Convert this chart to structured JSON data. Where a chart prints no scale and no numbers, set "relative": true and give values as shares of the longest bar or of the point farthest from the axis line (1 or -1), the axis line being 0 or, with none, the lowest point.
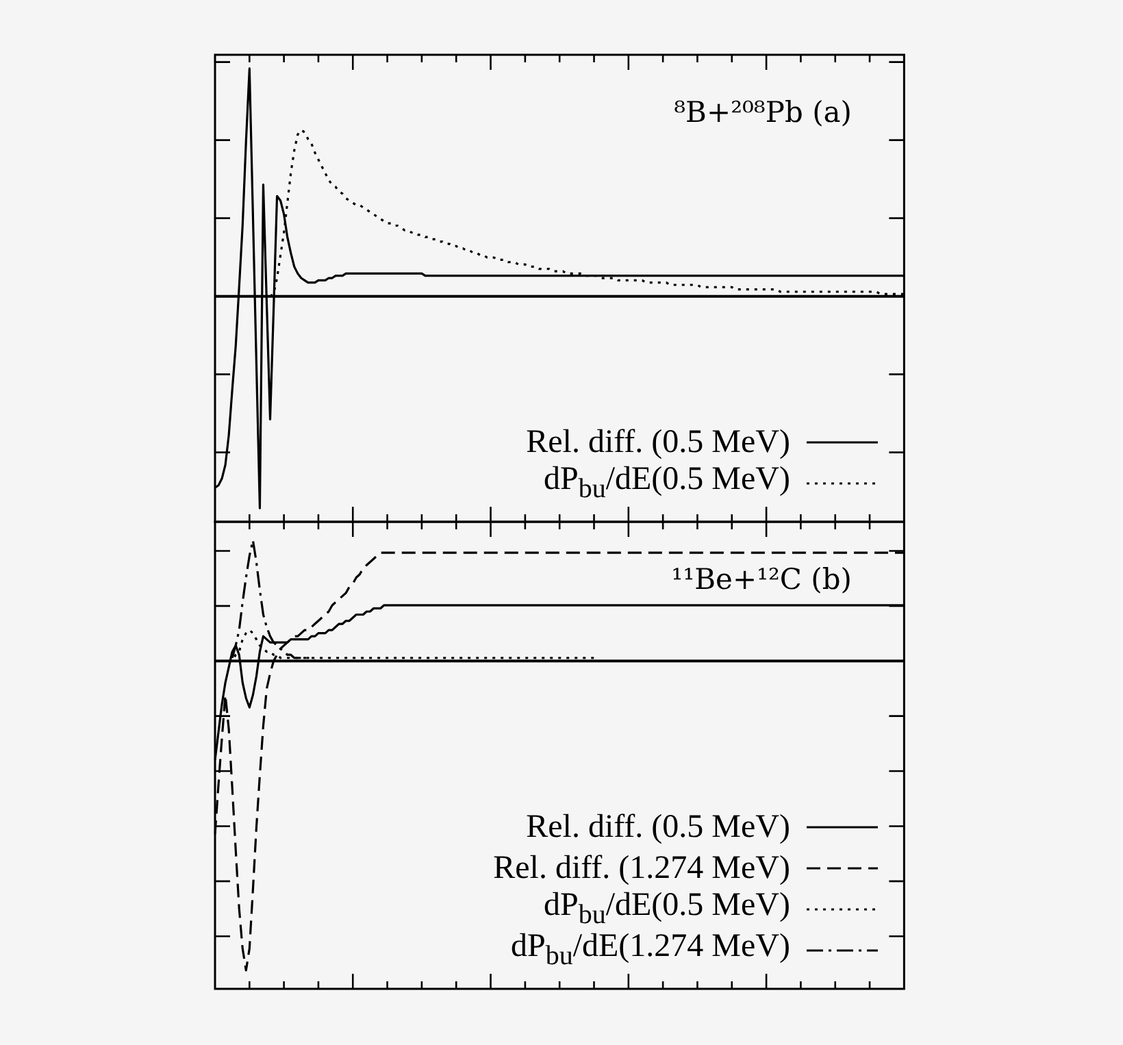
{
  "chart_data": [
    {
      "type": "line",
      "title": "⁸B+²⁰⁸Pb (a)",
      "relative": true,
      "legend": "bottom right",
      "categories": [
        null,
        null,
        null,
        null,
        null,
        null,
        null,
        null,
        null,
        null,
        null,
        null,
        null,
        null,
        null,
        null,
        null,
        null,
        null,
        null,
        null,
        null,
        null,
        null,
        null,
        null,
        null,
        null,
        null,
        null,
        null,
        null,
        null,
        null,
        null,
        null,
        null,
        null,
        null,
        null,
        null,
        null,
        null,
        null,
        null,
        null,
        null,
        null,
        null,
        null,
        null,
        null,
        null,
        null,
        null,
        null,
        null,
        null,
        null,
        null,
        null,
        null,
        null,
        null,
        null,
        null,
        null,
        null,
        null,
        null,
        null,
        null,
        null,
        null,
        null,
        null,
        null,
        null,
        null,
        null,
        null,
        null,
        null,
        null,
        null,
        null,
        null,
        null,
        null,
        null,
        null,
        null,
        null,
        null,
        null,
        null,
        null,
        null,
        null,
        null,
        null,
        null,
        null,
        null,
        null,
        null,
        null,
        null,
        null,
        null,
        null,
        null,
        null,
        null,
        null,
        null,
        null,
        null,
        null,
        null,
        null,
        null,
        null,
        null,
        null,
        null,
        null,
        null,
        null,
        null,
        null,
        null,
        null,
        null,
        null,
        null,
        null,
        null,
        null,
        null,
        null,
        null,
        null,
        null,
        null,
        null,
        null,
        null,
        null,
        null,
        null,
        null,
        null,
        null,
        null,
        null,
        null,
        null,
        null,
        null,
        null,
        null,
        null,
        null,
        null,
        null,
        null,
        null,
        null,
        null,
        null,
        null,
        null,
        null,
        null,
        null,
        null,
        null,
        null,
        null,
        null,
        null,
        null,
        null,
        null,
        null,
        null,
        null,
        null,
        null,
        null,
        null,
        null,
        null,
        null,
        null,
        null,
        null,
        null,
        null,
        null
      ],
      "series": [
        {
          "name": "Rel. diff. (0.5 MeV)",
          "color": "#000000",
          "line_style": "solid",
          "values": [
            -0.84,
            -0.83,
            -0.8,
            -0.74,
            -0.61,
            -0.41,
            -0.22,
            0.04,
            0.31,
            0.68,
            1,
            0.36,
            -0.29,
            -0.93,
            0.49,
            -0.03,
            -0.54,
            -0.06,
            0.44,
            0.42,
            0.36,
            0.26,
            0.19,
            0.13,
            0.1,
            0.08,
            0.07,
            0.06,
            0.06,
            0.06,
            0.07,
            0.07,
            0.07,
            0.08,
            0.08,
            0.09,
            0.09,
            0.09,
            0.1,
            0.1,
            0.1,
            0.1,
            0.1,
            0.1,
            0.1,
            0.1,
            0.1,
            0.1,
            0.1,
            0.1,
            0.1,
            0.1,
            0.1,
            0.1,
            0.1,
            0.1,
            0.1,
            0.1,
            0.1,
            0.1,
            0.1,
            0.09,
            0.09,
            0.09,
            0.09,
            0.09,
            0.09,
            0.09,
            0.09,
            0.09,
            0.09,
            0.09,
            0.09,
            0.09,
            0.09,
            0.09,
            0.09,
            0.09,
            0.09,
            0.09,
            0.09,
            0.09,
            0.09,
            0.09,
            0.09,
            0.09,
            0.09,
            0.09,
            0.09,
            0.09,
            0.09,
            0.09,
            0.09,
            0.09,
            0.09,
            0.09,
            0.09,
            0.09,
            0.09,
            0.09,
            0.09,
            0.09,
            0.09,
            0.09,
            0.09,
            0.09,
            0.09,
            0.09,
            0.09,
            0.09,
            0.09,
            0.09,
            0.09,
            0.09,
            0.09,
            0.09,
            0.09,
            0.09,
            0.09,
            0.09,
            0.09,
            0.09,
            0.09,
            0.09,
            0.09,
            0.09,
            0.09,
            0.09,
            0.09,
            0.09,
            0.09,
            0.09,
            0.09,
            0.09,
            0.09,
            0.09,
            0.09,
            0.09,
            0.09,
            0.09,
            0.09,
            0.09,
            0.09,
            0.09,
            0.09,
            0.09,
            0.09,
            0.09,
            0.09,
            0.09,
            0.09,
            0.09,
            0.09,
            0.09,
            0.09,
            0.09,
            0.09,
            0.09,
            0.09,
            0.09,
            0.09,
            0.09,
            0.09,
            0.09,
            0.09,
            0.09,
            0.09,
            0.09,
            0.09,
            0.09,
            0.09,
            0.09,
            0.09,
            0.09,
            0.09,
            0.09,
            0.09,
            0.09,
            0.09,
            0.09,
            0.09,
            0.09,
            0.09,
            0.09,
            0.09,
            0.09,
            0.09,
            0.09,
            0.09,
            0.09,
            0.09,
            0.09,
            0.09,
            0.09,
            0.09,
            0.09,
            0.09,
            0.09,
            0.09,
            0.09,
            0.09
          ]
        },
        {
          "name": "dP$_{bu}$/dE(0.5 MeV)",
          "color": "#000000",
          "line_style": "dotted",
          "values": [
            null,
            null,
            null,
            null,
            null,
            null,
            null,
            null,
            null,
            null,
            null,
            null,
            null,
            null,
            null,
            null,
            0,
            0.01,
            0.08,
            0.18,
            0.28,
            0.41,
            0.54,
            0.64,
            0.71,
            0.73,
            0.72,
            0.69,
            0.67,
            0.63,
            0.6,
            0.57,
            0.54,
            0.51,
            0.49,
            0.48,
            0.46,
            0.45,
            0.43,
            0.42,
            0.41,
            0.4,
            0.4,
            0.39,
            0.38,
            0.37,
            0.36,
            0.35,
            0.34,
            0.33,
            0.32,
            0.32,
            0.31,
            0.31,
            0.3,
            0.29,
            0.29,
            0.28,
            0.28,
            0.27,
            0.27,
            0.26,
            0.26,
            0.25,
            0.25,
            0.24,
            0.24,
            0.23,
            0.23,
            0.22,
            0.22,
            0.21,
            0.21,
            0.2,
            0.2,
            0.19,
            0.19,
            0.18,
            0.18,
            0.17,
            0.17,
            0.17,
            0.16,
            0.16,
            0.16,
            0.15,
            0.15,
            0.15,
            0.14,
            0.14,
            0.14,
            0.13,
            0.13,
            0.13,
            0.12,
            0.12,
            0.12,
            0.12,
            0.11,
            0.11,
            0.11,
            0.11,
            0.1,
            0.1,
            0.1,
            0.1,
            0.1,
            0.09,
            0.09,
            0.09,
            0.09,
            0.09,
            0.08,
            0.08,
            0.08,
            0.08,
            0.08,
            0.07,
            0.07,
            0.07,
            0.07,
            0.07,
            0.07,
            0.07,
            0.07,
            0.06,
            0.06,
            0.06,
            0.06,
            0.06,
            0.06,
            0.06,
            0.05,
            0.05,
            0.05,
            0.05,
            0.05,
            0.05,
            0.05,
            0.05,
            0.05,
            0.04,
            0.04,
            0.04,
            0.04,
            0.04,
            0.04,
            0.04,
            0.04,
            0.04,
            0.04,
            0.03,
            0.03,
            0.03,
            0.03,
            0.03,
            0.03,
            0.03,
            0.03,
            0.03,
            0.03,
            0.03,
            0.03,
            0.03,
            0.02,
            0.02,
            0.02,
            0.02,
            0.02,
            0.02,
            0.02,
            0.02,
            0.02,
            0.02,
            0.02,
            0.02,
            0.02,
            0.02,
            0.02,
            0.02,
            0.02,
            0.02,
            0.02,
            0.02,
            0.02,
            0.02,
            0.02,
            0.02,
            0.02,
            0.02,
            0.02,
            0.02,
            0.02,
            0.01,
            0.01,
            0.01,
            0.01,
            0.01,
            0.01,
            0.01,
            0.01
          ]
        }
      ]
    },
    {
      "type": "line",
      "title": "¹¹Be+¹²C (b)",
      "relative": true,
      "legend": "bottom right",
      "categories": [
        null,
        null,
        null,
        null,
        null,
        null,
        null,
        null,
        null,
        null,
        null,
        null,
        null,
        null,
        null,
        null,
        null,
        null,
        null,
        null,
        null,
        null,
        null,
        null,
        null,
        null,
        null,
        null,
        null,
        null,
        null,
        null,
        null,
        null,
        null,
        null,
        null,
        null,
        null,
        null,
        null,
        null,
        null,
        null,
        null,
        null,
        null,
        null,
        null,
        null,
        null,
        null,
        null,
        null,
        null,
        null,
        null,
        null,
        null,
        null,
        null,
        null,
        null,
        null,
        null,
        null,
        null,
        null,
        null,
        null,
        null,
        null,
        null,
        null,
        null,
        null,
        null,
        null,
        null,
        null,
        null,
        null,
        null,
        null,
        null,
        null,
        null,
        null,
        null,
        null,
        null,
        null,
        null,
        null,
        null,
        null,
        null,
        null,
        null,
        null,
        null,
        null,
        null,
        null,
        null,
        null,
        null,
        null,
        null,
        null,
        null,
        null,
        null,
        null,
        null,
        null,
        null,
        null,
        null,
        null,
        null,
        null,
        null,
        null,
        null,
        null,
        null,
        null,
        null,
        null,
        null,
        null,
        null,
        null,
        null,
        null,
        null,
        null,
        null,
        null,
        null,
        null,
        null,
        null,
        null,
        null,
        null,
        null,
        null,
        null,
        null,
        null,
        null,
        null,
        null,
        null,
        null,
        null,
        null,
        null,
        null,
        null,
        null,
        null,
        null,
        null,
        null,
        null,
        null,
        null,
        null,
        null,
        null,
        null,
        null,
        null,
        null,
        null,
        null,
        null,
        null,
        null,
        null,
        null,
        null,
        null,
        null,
        null,
        null,
        null,
        null,
        null,
        null,
        null,
        null,
        null,
        null,
        null,
        null,
        null,
        null
      ],
      "series": [
        {
          "name": "Rel. diff. (0.5 MeV)",
          "color": "#000000",
          "line_style": "solid",
          "values": [
            -0.32,
            -0.23,
            -0.14,
            -0.07,
            -0.02,
            0.03,
            0.05,
            0.02,
            -0.07,
            -0.12,
            -0.15,
            -0.11,
            -0.05,
            0.03,
            0.08,
            0.07,
            0.06,
            0.06,
            0.06,
            0.06,
            0.06,
            0.06,
            0.07,
            0.07,
            0.07,
            0.07,
            0.07,
            0.07,
            0.08,
            0.08,
            0.09,
            0.09,
            0.09,
            0.1,
            0.1,
            0.11,
            0.12,
            0.12,
            0.13,
            0.13,
            0.14,
            0.15,
            0.15,
            0.15,
            0.16,
            0.16,
            0.17,
            0.17,
            0.17,
            0.18,
            0.18,
            0.18,
            0.18,
            0.18,
            0.18,
            0.18,
            0.18,
            0.18,
            0.18,
            0.18,
            0.18,
            0.18,
            0.18,
            0.18,
            0.18,
            0.18,
            0.18,
            0.18,
            0.18,
            0.18,
            0.18,
            0.18,
            0.18,
            0.18,
            0.18,
            0.18,
            0.18,
            0.18,
            0.18,
            0.18,
            0.18,
            0.18,
            0.18,
            0.18,
            0.18,
            0.18,
            0.18,
            0.18,
            0.18,
            0.18,
            0.18,
            0.18,
            0.18,
            0.18,
            0.18,
            0.18,
            0.18,
            0.18,
            0.18,
            0.18,
            0.18,
            0.18,
            0.18,
            0.18,
            0.18,
            0.18,
            0.18,
            0.18,
            0.18,
            0.18,
            0.18,
            0.18,
            0.18,
            0.18,
            0.18,
            0.18,
            0.18,
            0.18,
            0.18,
            0.18,
            0.18,
            0.18,
            0.18,
            0.18,
            0.18,
            0.18,
            0.18,
            0.18,
            0.18,
            0.18,
            0.18,
            0.18,
            0.18,
            0.18,
            0.18,
            0.18,
            0.18,
            0.18,
            0.18,
            0.18,
            0.18,
            0.18,
            0.18,
            0.18,
            0.18,
            0.18,
            0.18,
            0.18,
            0.18,
            0.18,
            0.18,
            0.18,
            0.18,
            0.18,
            0.18,
            0.18,
            0.18,
            0.18,
            0.18,
            0.18,
            0.18,
            0.18,
            0.18,
            0.18,
            0.18,
            0.18,
            0.18,
            0.18,
            0.18,
            0.18,
            0.18,
            0.18,
            0.18,
            0.18,
            0.18,
            0.18,
            0.18,
            0.18,
            0.18,
            0.18,
            0.18,
            0.18,
            0.18,
            0.18,
            0.18,
            0.18,
            0.18,
            0.18,
            0.18,
            0.18,
            0.18,
            0.18,
            0.18,
            0.18,
            0.18,
            0.18,
            0.18,
            0.18,
            0.18,
            0.18,
            0.18
          ]
        },
        {
          "name": "Rel. diff. (1.274 MeV)",
          "color": "#000000",
          "line_style": "dashed",
          "values": [
            -0.56,
            -0.4,
            -0.25,
            -0.11,
            -0.22,
            -0.41,
            -0.61,
            -0.8,
            -0.93,
            -1,
            -0.93,
            -0.74,
            -0.54,
            -0.37,
            -0.21,
            -0.09,
            -0.04,
            0,
            0.02,
            0.04,
            0.05,
            0.06,
            0.07,
            0.08,
            0.08,
            0.09,
            0.1,
            0.1,
            0.11,
            0.12,
            0.13,
            0.14,
            0.15,
            0.16,
            0.18,
            0.19,
            0.2,
            0.21,
            0.22,
            0.24,
            0.25,
            0.27,
            0.28,
            0.3,
            0.31,
            0.32,
            0.33,
            0.34,
            0.35,
            0.35,
            0.35,
            0.35,
            0.35,
            0.35,
            0.35,
            0.35,
            0.35,
            0.35,
            0.35,
            0.35,
            0.35,
            0.35,
            0.35,
            0.35,
            0.35,
            0.35,
            0.35,
            0.35,
            0.35,
            0.35,
            0.35,
            0.35,
            0.35,
            0.35,
            0.35,
            0.35,
            0.35,
            0.35,
            0.35,
            0.35,
            0.35,
            0.35,
            0.35,
            0.35,
            0.35,
            0.35,
            0.35,
            0.35,
            0.35,
            0.35,
            0.35,
            0.35,
            0.35,
            0.35,
            0.35,
            0.35,
            0.35,
            0.35,
            0.35,
            0.35,
            0.35,
            0.35,
            0.35,
            0.35,
            0.35,
            0.35,
            0.35,
            0.35,
            0.35,
            0.35,
            0.35,
            0.35,
            0.35,
            0.35,
            0.35,
            0.35,
            0.35,
            0.35,
            0.35,
            0.35,
            0.35,
            0.35,
            0.35,
            0.35,
            0.35,
            0.35,
            0.35,
            0.35,
            0.35,
            0.35,
            0.35,
            0.35,
            0.35,
            0.35,
            0.35,
            0.35,
            0.35,
            0.35,
            0.35,
            0.35,
            0.35,
            0.35,
            0.35,
            0.35,
            0.35,
            0.35,
            0.35,
            0.35,
            0.35,
            0.35,
            0.35,
            0.35,
            0.35,
            0.35,
            0.35,
            0.35,
            0.35,
            0.35,
            0.35,
            0.35,
            0.35,
            0.35,
            0.35,
            0.35,
            0.35,
            0.35,
            0.35,
            0.35,
            0.35,
            0.35,
            0.35,
            0.35,
            0.35,
            0.35,
            0.35,
            0.35,
            0.35,
            0.35,
            0.35,
            0.35,
            0.35,
            0.35,
            0.35,
            0.35,
            0.35,
            0.35,
            0.35,
            0.35,
            0.35,
            0.35,
            0.35,
            0.35,
            0.35,
            0.35,
            0.35,
            0.35,
            0.35,
            0.35,
            0.35,
            0.35,
            0.35
          ]
        },
        {
          "name": "dP$_{bu}$/dE(0.5 MeV)",
          "color": "#000000",
          "line_style": "dotted",
          "values": [
            null,
            null,
            null,
            null,
            0,
            0,
            0.02,
            0.03,
            0.07,
            0.09,
            0.1,
            0.09,
            0.07,
            0.05,
            0.04,
            0.03,
            0.03,
            0.02,
            0.02,
            0.01,
            0.01,
            0.01,
            0.01,
            0.01,
            0.01,
            0.01,
            0.01,
            0.01,
            0.01,
            0.01,
            0.01,
            0.01,
            0.01,
            0.01,
            0.01,
            0.01,
            0.01,
            0.01,
            0.01,
            0.01,
            0.01,
            0.01,
            0.01,
            0.01,
            0.01,
            0.01,
            0.01,
            0.01,
            0.01,
            0.01,
            0.01,
            0.01,
            0.01,
            0.01,
            0.01,
            0.01,
            0.01,
            0.01,
            0.01,
            0.01,
            0.01,
            0.01,
            0.01,
            0.01,
            0.01,
            0.01,
            0.01,
            0.01,
            0.01,
            0.01,
            0.01,
            0.01,
            0.01,
            0.01,
            0.01,
            0.01,
            0.01,
            0.01,
            0.01,
            0.01,
            0.01,
            0.01,
            0.01,
            0.01,
            0.01,
            0.01,
            0.01,
            0.01,
            0.01,
            0.01,
            0.01,
            0.01,
            0.01,
            0.01,
            0.01,
            0.01,
            0.01,
            0.01,
            0.01,
            0.01,
            0.01,
            0.01,
            0.01,
            0.01,
            0.01,
            0.01,
            0.01,
            0.01,
            0.01,
            0.01,
            0.01,
            0,
            null,
            null,
            null,
            null,
            null,
            null,
            null,
            null,
            null,
            null,
            null,
            null,
            null,
            null,
            null,
            null,
            null,
            null,
            null,
            null,
            null,
            null,
            null,
            null,
            null,
            null,
            null,
            null,
            null,
            null,
            null,
            null,
            null,
            null,
            null,
            null,
            null,
            null,
            null,
            null,
            null,
            null,
            null,
            null,
            null,
            null,
            null,
            null,
            null,
            null,
            null,
            null,
            null,
            null,
            null,
            null,
            null,
            null,
            null,
            null,
            null,
            null,
            null,
            null,
            null,
            null,
            null,
            null,
            null,
            null,
            null,
            null,
            null,
            null,
            null,
            null,
            null,
            null,
            null,
            null,
            null,
            null,
            null,
            null,
            null,
            null,
            null,
            null,
            null
          ]
        },
        {
          "name": "dP$_{bu}$/dE(1.274 MeV)",
          "color": "#000000",
          "line_style": "dashdot",
          "values": [
            null,
            null,
            null,
            null,
            null,
            0.01,
            0.05,
            0.1,
            0.19,
            0.27,
            0.34,
            0.39,
            0.32,
            0.23,
            0.15,
            0.11,
            0.08,
            0.06,
            0.05,
            0.04,
            0.03,
            0.02,
            0.02,
            0.01,
            0.01,
            0.01,
            0.01,
            0.01,
            0.01,
            0,
            null,
            null,
            null,
            null,
            null,
            null,
            null,
            null,
            null,
            null,
            null,
            null,
            null,
            null,
            null,
            null,
            null,
            null,
            null,
            null,
            null,
            null,
            null,
            null,
            null,
            null,
            null,
            null,
            null,
            null,
            null,
            null,
            null,
            null,
            null,
            null,
            null,
            null,
            null,
            null,
            null,
            null,
            null,
            null,
            null,
            null,
            null,
            null,
            null,
            null,
            null,
            null,
            null,
            null,
            null,
            null,
            null,
            null,
            null,
            null,
            null,
            null,
            null,
            null,
            null,
            null,
            null,
            null,
            null,
            null,
            null,
            null,
            null,
            null,
            null,
            null,
            null,
            null,
            null,
            null,
            null,
            null,
            null,
            null,
            null,
            null,
            null,
            null,
            null,
            null,
            null,
            null,
            null,
            null,
            null,
            null,
            null,
            null,
            null,
            null,
            null,
            null,
            null,
            null,
            null,
            null,
            null,
            null,
            null,
            null,
            null,
            null,
            null,
            null,
            null,
            null,
            null,
            null,
            null,
            null,
            null,
            null,
            null,
            null,
            null,
            null,
            null,
            null,
            null,
            null,
            null,
            null,
            null,
            null,
            null,
            null,
            null,
            null,
            null,
            null,
            null,
            null,
            null,
            null,
            null,
            null,
            null,
            null,
            null,
            null,
            null,
            null,
            null,
            null,
            null,
            null,
            null,
            null,
            null,
            null,
            null,
            null,
            null,
            null,
            null,
            null,
            null,
            null,
            null,
            null,
            null
          ]
        }
      ]
    }
  ]
}
